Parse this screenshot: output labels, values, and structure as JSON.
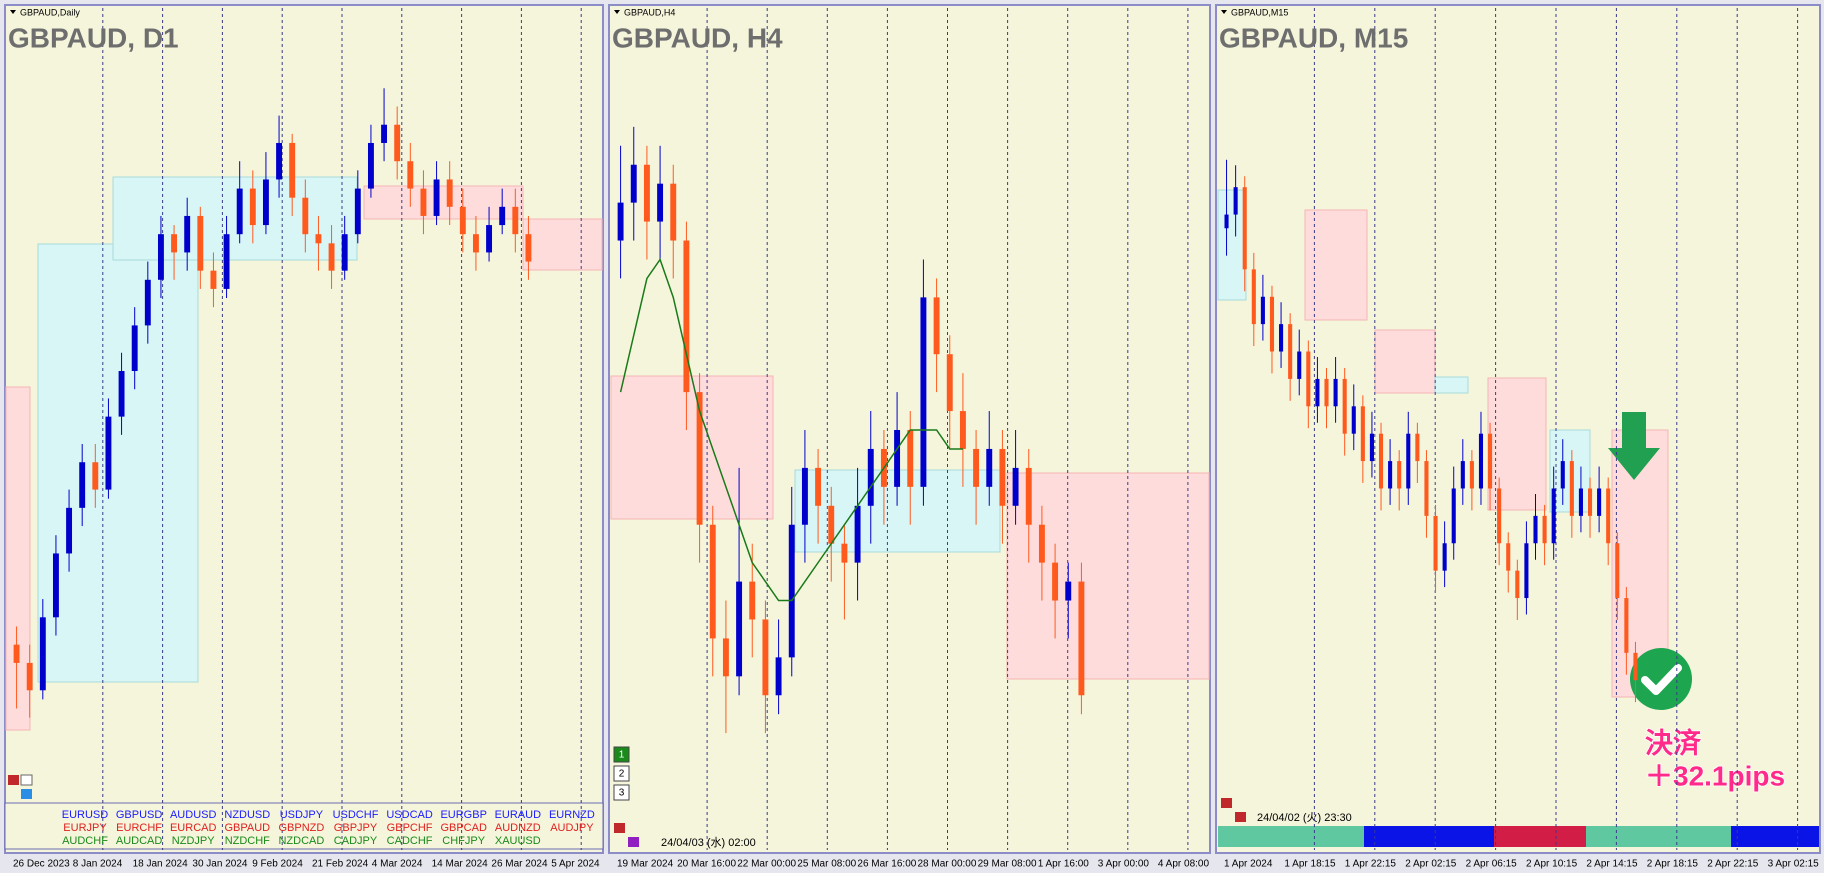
{
  "colors": {
    "up": "#0000cc",
    "down": "#ff5a1e",
    "ma": "#1a7a1a"
  },
  "panels": [
    {
      "label": "GBPAUD,Daily",
      "title": "GBPAUD, D1",
      "ylim": [
        1.894,
        1.968
      ],
      "xlabels": [
        "26 Dec 2023",
        "8 Jan 2024",
        "18 Jan 2024",
        "30 Jan 2024",
        "9 Feb 2024",
        "21 Feb 2024",
        "4 Mar 2024",
        "14 Mar 2024",
        "26 Mar 2024",
        "5 Apr 2024"
      ],
      "candles": [
        [
          1.905,
          1.907,
          1.898,
          1.903
        ],
        [
          1.903,
          1.905,
          1.897,
          1.9
        ],
        [
          1.9,
          1.91,
          1.899,
          1.908
        ],
        [
          1.908,
          1.917,
          1.906,
          1.915
        ],
        [
          1.915,
          1.922,
          1.913,
          1.92
        ],
        [
          1.92,
          1.927,
          1.918,
          1.925
        ],
        [
          1.925,
          1.927,
          1.92,
          1.922
        ],
        [
          1.922,
          1.932,
          1.921,
          1.93
        ],
        [
          1.93,
          1.937,
          1.928,
          1.935
        ],
        [
          1.935,
          1.942,
          1.933,
          1.94
        ],
        [
          1.94,
          1.947,
          1.938,
          1.945
        ],
        [
          1.945,
          1.952,
          1.943,
          1.95
        ],
        [
          1.95,
          1.951,
          1.945,
          1.948
        ],
        [
          1.948,
          1.954,
          1.946,
          1.952
        ],
        [
          1.952,
          1.953,
          1.944,
          1.946
        ],
        [
          1.946,
          1.948,
          1.942,
          1.944
        ],
        [
          1.944,
          1.952,
          1.943,
          1.95
        ],
        [
          1.95,
          1.958,
          1.949,
          1.955
        ],
        [
          1.955,
          1.957,
          1.949,
          1.951
        ],
        [
          1.951,
          1.959,
          1.95,
          1.956
        ],
        [
          1.956,
          1.963,
          1.954,
          1.96
        ],
        [
          1.96,
          1.961,
          1.952,
          1.954
        ],
        [
          1.954,
          1.956,
          1.948,
          1.95
        ],
        [
          1.95,
          1.952,
          1.946,
          1.949
        ],
        [
          1.949,
          1.951,
          1.944,
          1.946
        ],
        [
          1.946,
          1.952,
          1.945,
          1.95
        ],
        [
          1.95,
          1.957,
          1.949,
          1.955
        ],
        [
          1.955,
          1.962,
          1.954,
          1.96
        ],
        [
          1.96,
          1.966,
          1.958,
          1.962
        ],
        [
          1.962,
          1.964,
          1.956,
          1.958
        ],
        [
          1.958,
          1.96,
          1.953,
          1.955
        ],
        [
          1.955,
          1.957,
          1.95,
          1.952
        ],
        [
          1.952,
          1.958,
          1.951,
          1.956
        ],
        [
          1.956,
          1.958,
          1.951,
          1.953
        ],
        [
          1.953,
          1.955,
          1.948,
          1.95
        ],
        [
          1.95,
          1.952,
          1.946,
          1.948
        ],
        [
          1.948,
          1.953,
          1.947,
          1.951
        ],
        [
          1.951,
          1.955,
          1.95,
          1.953
        ],
        [
          1.953,
          1.955,
          1.948,
          1.95
        ],
        [
          1.95,
          1.952,
          1.945,
          1.947
        ]
      ]
    },
    {
      "label": "GBPAUD,H4",
      "title": "GBPAUD, H4",
      "ylim": [
        1.924,
        1.962
      ],
      "xlabels": [
        "19 Mar 2024",
        "20 Mar 16:00",
        "22 Mar 00:00",
        "25 Mar 08:00",
        "26 Mar 16:00",
        "28 Mar 00:00",
        "29 Mar 08:00",
        "1 Apr 16:00",
        "3 Apr 00:00",
        "4 Apr 08:00"
      ],
      "candles": [
        [
          1.953,
          1.958,
          1.951,
          1.955
        ],
        [
          1.955,
          1.959,
          1.953,
          1.957
        ],
        [
          1.957,
          1.958,
          1.952,
          1.954
        ],
        [
          1.954,
          1.958,
          1.952,
          1.956
        ],
        [
          1.956,
          1.957,
          1.951,
          1.953
        ],
        [
          1.953,
          1.954,
          1.943,
          1.945
        ],
        [
          1.945,
          1.946,
          1.936,
          1.938
        ],
        [
          1.938,
          1.939,
          1.93,
          1.932
        ],
        [
          1.932,
          1.934,
          1.927,
          1.93
        ],
        [
          1.93,
          1.941,
          1.929,
          1.935
        ],
        [
          1.935,
          1.937,
          1.931,
          1.933
        ],
        [
          1.933,
          1.934,
          1.927,
          1.929
        ],
        [
          1.929,
          1.933,
          1.928,
          1.931
        ],
        [
          1.931,
          1.94,
          1.93,
          1.938
        ],
        [
          1.938,
          1.943,
          1.936,
          1.941
        ],
        [
          1.941,
          1.942,
          1.937,
          1.939
        ],
        [
          1.939,
          1.94,
          1.935,
          1.937
        ],
        [
          1.937,
          1.938,
          1.933,
          1.936
        ],
        [
          1.936,
          1.941,
          1.934,
          1.939
        ],
        [
          1.939,
          1.944,
          1.937,
          1.942
        ],
        [
          1.942,
          1.943,
          1.938,
          1.94
        ],
        [
          1.94,
          1.945,
          1.939,
          1.943
        ],
        [
          1.943,
          1.944,
          1.938,
          1.94
        ],
        [
          1.94,
          1.952,
          1.939,
          1.95
        ],
        [
          1.95,
          1.951,
          1.945,
          1.947
        ],
        [
          1.947,
          1.948,
          1.942,
          1.944
        ],
        [
          1.944,
          1.946,
          1.94,
          1.942
        ],
        [
          1.942,
          1.943,
          1.938,
          1.94
        ],
        [
          1.94,
          1.944,
          1.939,
          1.942
        ],
        [
          1.942,
          1.943,
          1.937,
          1.939
        ],
        [
          1.939,
          1.943,
          1.938,
          1.941
        ],
        [
          1.941,
          1.942,
          1.936,
          1.938
        ],
        [
          1.938,
          1.939,
          1.934,
          1.936
        ],
        [
          1.936,
          1.937,
          1.932,
          1.934
        ],
        [
          1.934,
          1.936,
          1.932,
          1.935
        ],
        [
          1.935,
          1.936,
          1.928,
          1.929
        ]
      ],
      "ma": [
        1.945,
        1.948,
        1.951,
        1.952,
        1.95,
        1.947,
        1.944,
        1.942,
        1.94,
        1.938,
        1.936,
        1.935,
        1.934,
        1.934,
        1.935,
        1.936,
        1.937,
        1.938,
        1.939,
        1.94,
        1.941,
        1.942,
        1.943,
        1.943,
        1.943,
        1.942,
        1.942,
        null,
        null,
        null,
        null,
        null,
        null,
        null,
        null,
        null
      ],
      "buttons": [
        "1",
        "2",
        "3"
      ],
      "timestamp": "24/04/03 (水) 02:00"
    },
    {
      "label": "GBPAUD,M15",
      "title": "GBPAUD, M15",
      "ylim": [
        1.928,
        1.951
      ],
      "xlabels": [
        "1 Apr 2024",
        "1 Apr 18:15",
        "1 Apr 22:15",
        "2 Apr 02:15",
        "2 Apr 06:15",
        "2 Apr 10:15",
        "2 Apr 14:15",
        "2 Apr 18:15",
        "2 Apr 22:15",
        "3 Apr 02:15"
      ],
      "candles": [
        [
          1.9465,
          1.949,
          1.9455,
          1.947
        ],
        [
          1.947,
          1.9488,
          1.9462,
          1.948
        ],
        [
          1.948,
          1.9484,
          1.9442,
          1.945
        ],
        [
          1.945,
          1.9456,
          1.9422,
          1.943
        ],
        [
          1.943,
          1.9448,
          1.9424,
          1.944
        ],
        [
          1.944,
          1.9444,
          1.9412,
          1.942
        ],
        [
          1.942,
          1.9438,
          1.9414,
          1.943
        ],
        [
          1.943,
          1.9434,
          1.9402,
          1.941
        ],
        [
          1.941,
          1.9428,
          1.9404,
          1.942
        ],
        [
          1.942,
          1.9424,
          1.9392,
          1.94
        ],
        [
          1.94,
          1.9418,
          1.9394,
          1.941
        ],
        [
          1.941,
          1.9414,
          1.9392,
          1.94
        ],
        [
          1.94,
          1.9418,
          1.9394,
          1.941
        ],
        [
          1.941,
          1.9414,
          1.9382,
          1.939
        ],
        [
          1.939,
          1.9408,
          1.9384,
          1.94
        ],
        [
          1.94,
          1.9404,
          1.9372,
          1.938
        ],
        [
          1.938,
          1.9398,
          1.9374,
          1.939
        ],
        [
          1.939,
          1.9394,
          1.9362,
          1.937
        ],
        [
          1.937,
          1.9388,
          1.9364,
          1.938
        ],
        [
          1.938,
          1.9384,
          1.9362,
          1.937
        ],
        [
          1.937,
          1.9398,
          1.9364,
          1.939
        ],
        [
          1.939,
          1.9394,
          1.9372,
          1.938
        ],
        [
          1.938,
          1.9384,
          1.9352,
          1.936
        ],
        [
          1.936,
          1.9364,
          1.9332,
          1.934
        ],
        [
          1.934,
          1.9358,
          1.9334,
          1.935
        ],
        [
          1.935,
          1.9378,
          1.9344,
          1.937
        ],
        [
          1.937,
          1.9388,
          1.9364,
          1.938
        ],
        [
          1.938,
          1.9384,
          1.9362,
          1.937
        ],
        [
          1.937,
          1.9398,
          1.9364,
          1.939
        ],
        [
          1.939,
          1.9394,
          1.9362,
          1.937
        ],
        [
          1.937,
          1.9374,
          1.9342,
          1.935
        ],
        [
          1.935,
          1.9354,
          1.9332,
          1.934
        ],
        [
          1.934,
          1.9344,
          1.9322,
          1.933
        ],
        [
          1.933,
          1.9358,
          1.9324,
          1.935
        ],
        [
          1.935,
          1.9368,
          1.9344,
          1.936
        ],
        [
          1.936,
          1.9364,
          1.9342,
          1.935
        ],
        [
          1.935,
          1.9378,
          1.9344,
          1.937
        ],
        [
          1.937,
          1.9388,
          1.9364,
          1.938
        ],
        [
          1.938,
          1.9384,
          1.9352,
          1.936
        ],
        [
          1.936,
          1.9378,
          1.9354,
          1.937
        ],
        [
          1.937,
          1.9374,
          1.9352,
          1.936
        ],
        [
          1.936,
          1.9378,
          1.9354,
          1.937
        ],
        [
          1.937,
          1.9374,
          1.9342,
          1.935
        ],
        [
          1.935,
          1.9354,
          1.9322,
          1.933
        ],
        [
          1.933,
          1.9334,
          1.9302,
          1.931
        ],
        [
          1.931,
          1.9314,
          1.9292,
          1.93
        ]
      ],
      "timestamp": "24/04/02 (火) 23:30",
      "result": "決済",
      "pips": "＋32.1pips"
    }
  ],
  "symbols": [
    {
      "color": "#1a1aff",
      "names": [
        "EURUSD",
        "GBPUSD",
        "AUDUSD",
        "NZDUSD",
        "USDJPY",
        "USDCHF",
        "USDCAD",
        "EURGBP",
        "EURAUD",
        "EURNZD"
      ]
    },
    {
      "color": "#e02020",
      "names": [
        "EURJPY",
        "EURCHF",
        "EURCAD",
        "GBPAUD",
        "GBPNZD",
        "GBPJPY",
        "GBPCHF",
        "GBPCAD",
        "AUDNZD",
        "AUDJPY"
      ]
    },
    {
      "color": "#1a8a1a",
      "names": [
        "AUDCHF",
        "AUDCAD",
        "NZDJPY",
        "NZDCHF",
        "NZDCAD",
        "CADJPY",
        "CADCHF",
        "CHFJPY",
        "XAUUSD"
      ]
    }
  ]
}
